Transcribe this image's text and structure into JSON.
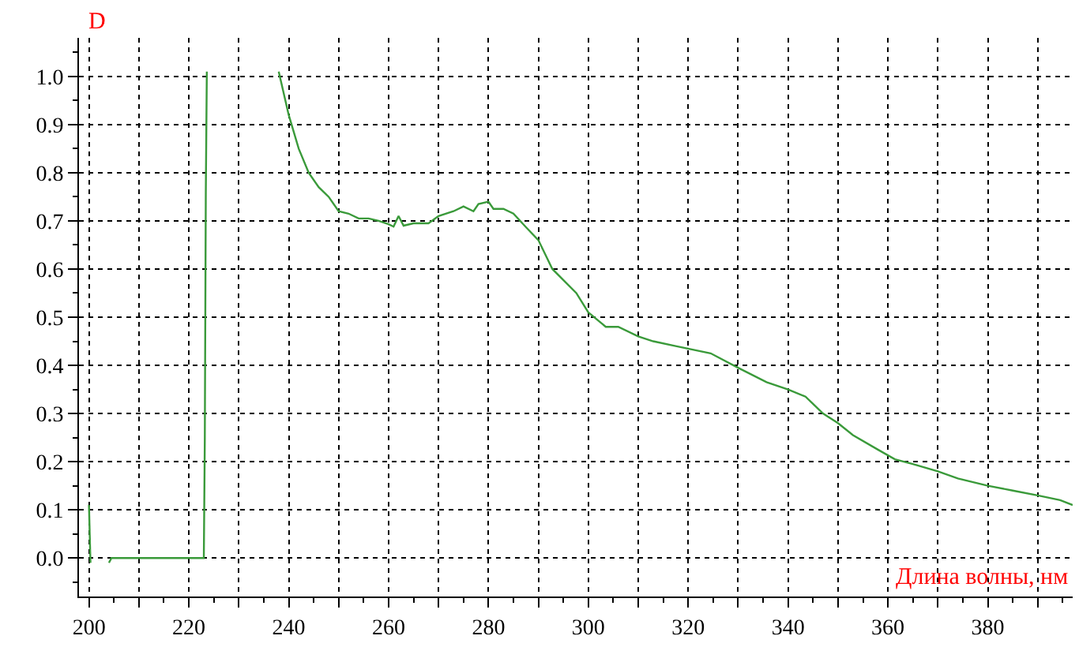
{
  "chart_data": {
    "type": "line",
    "xlabel": "Длина волны, нм",
    "ylabel": "D",
    "xlim": [
      198,
      397
    ],
    "ylim": [
      -0.08,
      1.08
    ],
    "xticks": [
      200,
      {
        "value": 210,
        "label": null
      },
      220,
      {
        "value": 230,
        "label": null
      },
      240,
      {
        "value": 250,
        "label": null
      },
      260,
      {
        "value": 270,
        "label": null
      },
      280,
      {
        "value": 290,
        "label": null
      },
      300,
      {
        "value": 310,
        "label": null
      },
      320,
      {
        "value": 330,
        "label": null
      },
      340,
      {
        "value": 350,
        "label": null
      },
      360,
      {
        "value": 370,
        "label": null
      },
      380,
      {
        "value": 390,
        "label": null
      }
    ],
    "yticks": [
      {
        "value": 0,
        "label": "0.0"
      },
      0.1,
      0.2,
      0.3,
      0.4,
      0.5,
      0.6,
      0.7,
      0.8,
      0.9,
      {
        "value": 1,
        "label": "1.0"
      }
    ],
    "grid": true,
    "marker": "none",
    "line_style": "solid",
    "series": [
      {
        "color": "#3a9a3a",
        "x": [
          200,
          200.3,
          200.5,
          204,
          204.5,
          223,
          223.2,
          223.4,
          223.6,
          223.8,
          238,
          240,
          242,
          244,
          246,
          248,
          250,
          252,
          254,
          256,
          258,
          260,
          261,
          262,
          263,
          265,
          268,
          270,
          273,
          275,
          277,
          278,
          280,
          281,
          283,
          285,
          287.6,
          290,
          292.8,
          297.6,
          300,
          303.5,
          306,
          310,
          313,
          317.5,
          324.5,
          330,
          335.7,
          340,
          343.5,
          347,
          350,
          353,
          358,
          361.4,
          365,
          370,
          374,
          380,
          385,
          390,
          394.5,
          397
        ],
        "values": [
          0.11,
          -0.01,
          null,
          -0.01,
          0,
          0,
          0.25,
          0.76,
          1.01,
          null,
          1.01,
          0.92,
          0.85,
          0.8,
          0.77,
          0.75,
          0.72,
          0.715,
          0.705,
          0.705,
          0.7,
          0.693,
          0.688,
          0.71,
          0.69,
          0.695,
          0.695,
          0.71,
          0.72,
          0.73,
          0.72,
          0.735,
          0.74,
          0.725,
          0.725,
          0.715,
          0.686,
          0.66,
          0.6,
          0.55,
          0.51,
          0.48,
          0.48,
          0.46,
          0.45,
          0.44,
          0.425,
          0.395,
          0.365,
          0.35,
          0.335,
          0.3,
          0.28,
          0.255,
          0.225,
          0.205,
          0.195,
          0.18,
          0.165,
          0.15,
          0.14,
          0.13,
          0.12,
          0.11
        ]
      }
    ]
  }
}
